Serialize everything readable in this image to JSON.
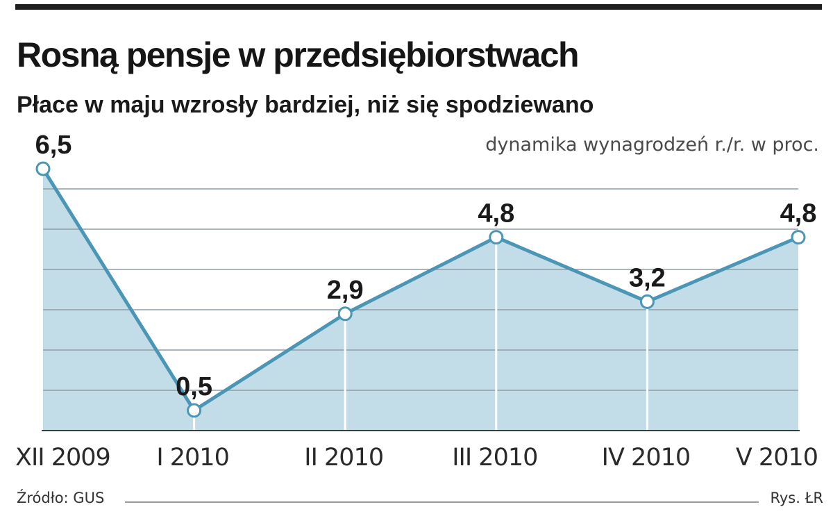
{
  "chart_data": {
    "type": "area",
    "title": "Rosną pensje w przedsiębiorstwach",
    "subtitle": "Płace w maju wzrosły bardziej, niż się spodziewano",
    "ylabel": "dynamika wynagrodzeń r./r. w proc.",
    "categories": [
      "XII 2009",
      "I 2010",
      "II 2010",
      "III 2010",
      "IV 2010",
      "V 2010"
    ],
    "values": [
      6.5,
      0.5,
      2.9,
      4.8,
      3.2,
      4.8
    ],
    "data_labels": [
      "6,5",
      "0,5",
      "2,9",
      "4,8",
      "3,2",
      "4,8"
    ],
    "ylim": [
      0,
      6.5
    ],
    "grid": true,
    "legend": "none",
    "colors": {
      "line": "#4b95b5",
      "fill": "#c3dde8",
      "gridline": "#8f9ea4",
      "baseline": "#3d3d3d",
      "marker_fill": "#ffffff",
      "label": "#1a1a1a"
    }
  },
  "footer": {
    "source": "Źródło: GUS",
    "credit": "Rys. ŁR"
  }
}
